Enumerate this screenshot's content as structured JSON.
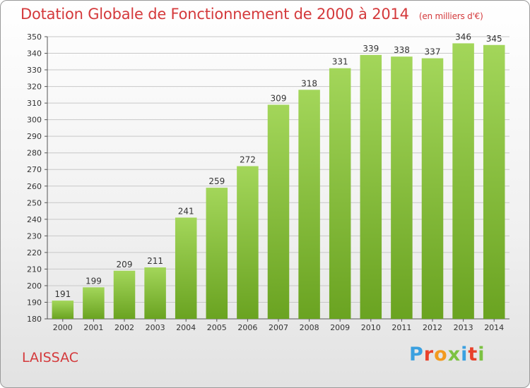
{
  "header": {
    "title": "Dotation Globale de Fonctionnement de 2000 à 2014",
    "subtitle": "(en milliers d'€)"
  },
  "footer": {
    "commune": "LAISSAC",
    "brand": "Proxiti",
    "brand_colors": [
      "#3aa0e0",
      "#e8412b",
      "#f29a1f",
      "#7cc242",
      "#3aa0e0",
      "#e8412b",
      "#7cc242"
    ]
  },
  "chart_data": {
    "type": "bar",
    "title": "Dotation Globale de Fonctionnement de 2000 à 2014",
    "subtitle": "(en milliers d'€)",
    "categories": [
      "2000",
      "2001",
      "2002",
      "2003",
      "2004",
      "2005",
      "2006",
      "2007",
      "2008",
      "2009",
      "2010",
      "2011",
      "2012",
      "2013",
      "2014"
    ],
    "values": [
      191,
      199,
      209,
      211,
      241,
      259,
      272,
      309,
      318,
      331,
      339,
      338,
      337,
      346,
      345
    ],
    "ylim": [
      180,
      350
    ],
    "ytick_step": 10,
    "grid": true,
    "bar_color_top": "#a3d65a",
    "bar_color_bottom": "#6aa321",
    "grid_color": "#c8c8c8",
    "title_color": "#d4393b"
  }
}
